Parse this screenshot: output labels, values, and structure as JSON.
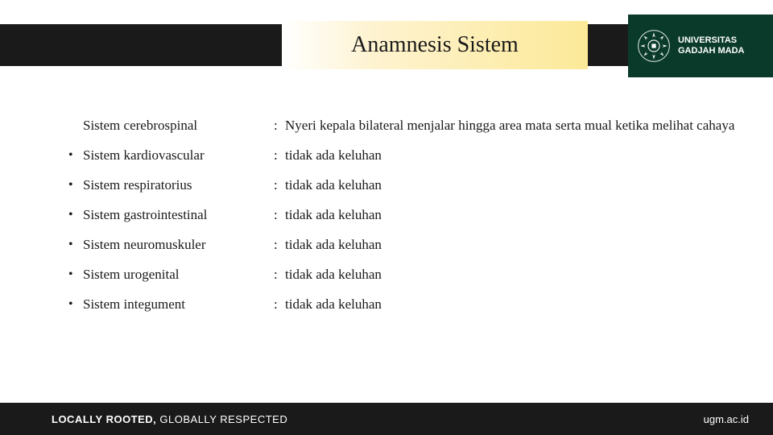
{
  "title": "Anamnesis Sistem",
  "university": {
    "line1": "UNIVERSITAS",
    "line2": "GADJAH MADA"
  },
  "firstRow": {
    "label": "Sistem cerebrospinal",
    "value": "Nyeri kepala bilateral menjalar hingga area mata serta mual ketika melihat cahaya"
  },
  "rows": [
    {
      "label": "Sistem kardiovascular",
      "value": "tidak ada keluhan"
    },
    {
      "label": "Sistem respiratorius",
      "value": "tidak ada keluhan"
    },
    {
      "label": "Sistem gastrointestinal",
      "value": "tidak ada keluhan"
    },
    {
      "label": "Sistem neuromuskuler",
      "value": "tidak ada keluhan"
    },
    {
      "label": "Sistem urogenital",
      "value": "tidak ada keluhan"
    },
    {
      "label": "Sistem integument",
      "value": "tidak ada keluhan"
    }
  ],
  "footer": {
    "left_bold": "LOCALLY ROOTED,",
    "left_rest": " GLOBALLY RESPECTED",
    "right": "ugm.ac.id"
  },
  "colors": {
    "bar": "#1a1a1a",
    "logo_bg": "#0a3a2a",
    "title_grad_end": "#fce998"
  }
}
